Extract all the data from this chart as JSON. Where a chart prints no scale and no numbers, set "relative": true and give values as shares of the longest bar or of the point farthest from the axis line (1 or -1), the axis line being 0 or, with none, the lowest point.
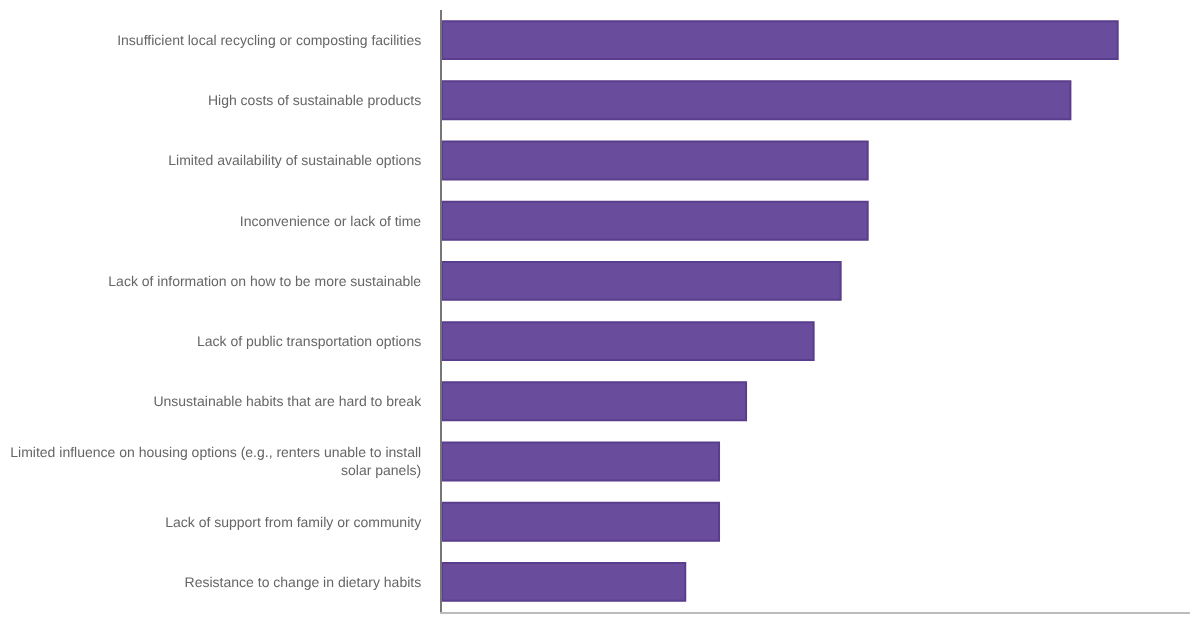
{
  "chart_data": {
    "type": "bar",
    "orientation": "horizontal",
    "relative": true,
    "categories": [
      "Insufficient local recycling or composting facilities",
      "High costs of sustainable products",
      "Limited availability of sustainable options",
      "Inconvenience or lack of time",
      "Lack of information on how to be more sustainable",
      "Lack of public transportation options",
      "Unsustainable habits that are hard to break",
      "Limited influence on housing options (e.g., renters unable to install solar panels)",
      "Lack of support from family or community",
      "Resistance to change in dietary habits"
    ],
    "values": [
      1,
      0.93,
      0.63,
      0.63,
      0.59,
      0.55,
      0.45,
      0.41,
      0.41,
      0.36
    ],
    "color": "#6a4c9c"
  }
}
